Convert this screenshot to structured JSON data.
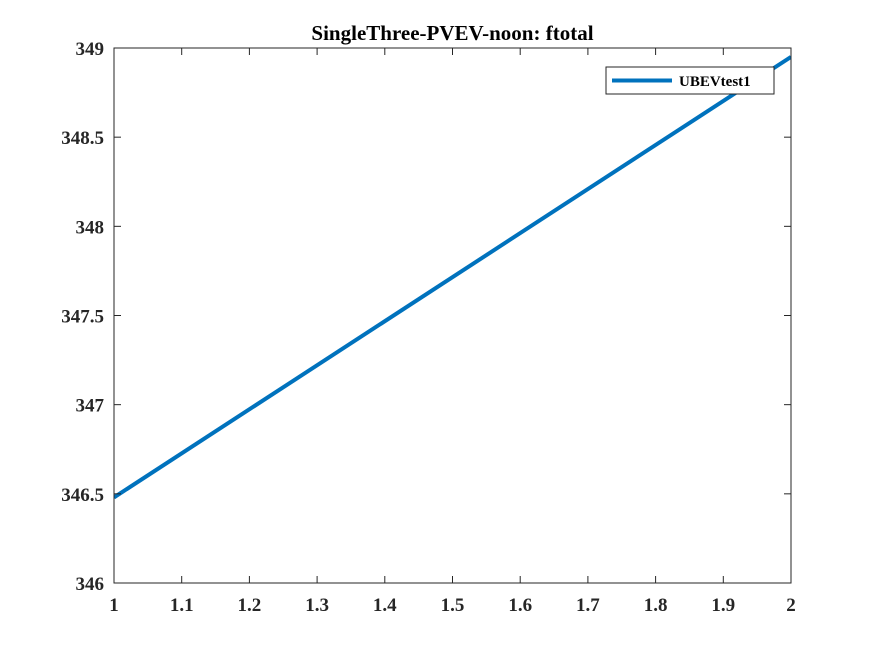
{
  "chart_data": {
    "type": "line",
    "title": "SingleThree-PVEV-noon: ftotal",
    "xlabel": "",
    "ylabel": "",
    "xlim": [
      1,
      2
    ],
    "ylim": [
      346,
      349
    ],
    "xticks": [
      1,
      1.1,
      1.2,
      1.3,
      1.4,
      1.5,
      1.6,
      1.7,
      1.8,
      1.9,
      2
    ],
    "xtick_labels": [
      "1",
      "1.1",
      "1.2",
      "1.3",
      "1.4",
      "1.5",
      "1.6",
      "1.7",
      "1.8",
      "1.9",
      "2"
    ],
    "yticks": [
      346,
      346.5,
      347,
      347.5,
      348,
      348.5,
      349
    ],
    "ytick_labels": [
      "346",
      "346.5",
      "347",
      "347.5",
      "348",
      "348.5",
      "349"
    ],
    "grid": false,
    "legend_position": "top-right",
    "series": [
      {
        "name": "UBEVtest1",
        "color": "#0072BD",
        "x": [
          1,
          2
        ],
        "y": [
          346.48,
          348.95
        ]
      }
    ]
  }
}
